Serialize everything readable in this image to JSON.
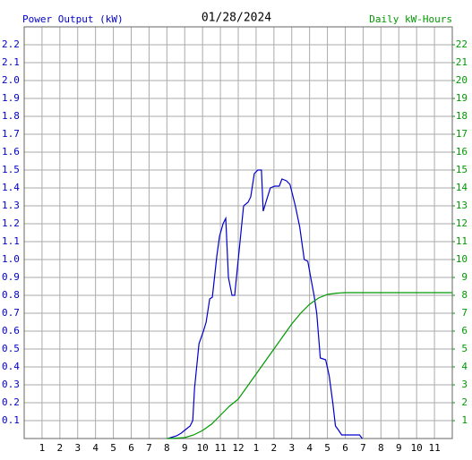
{
  "chart_data": {
    "type": "line",
    "title": "01/28/2024",
    "y_label": "Power Output (kW)",
    "y2_label": "Daily kW-Hours",
    "grid": true,
    "xlim": [
      0,
      24
    ],
    "xticks": [
      1,
      2,
      3,
      4,
      5,
      6,
      7,
      8,
      9,
      10,
      11,
      12,
      {
        "value": 13,
        "label": "1"
      },
      {
        "value": 14,
        "label": "2"
      },
      {
        "value": 15,
        "label": "3"
      },
      {
        "value": 16,
        "label": "4"
      },
      {
        "value": 17,
        "label": "5"
      },
      {
        "value": 18,
        "label": "6"
      },
      {
        "value": 19,
        "label": "7"
      },
      {
        "value": 20,
        "label": "8"
      },
      {
        "value": 21,
        "label": "9"
      },
      {
        "value": 22,
        "label": "10"
      },
      {
        "value": 23,
        "label": "11"
      }
    ],
    "ylim": [
      0,
      2.3
    ],
    "yticks": [
      0.1,
      0.2,
      0.3,
      0.4,
      0.5,
      0.6,
      0.7,
      0.8,
      0.9,
      {
        "value": 1.0,
        "label": "1.0"
      },
      1.1,
      1.2,
      1.3,
      1.4,
      1.5,
      1.6,
      1.7,
      1.8,
      1.9,
      {
        "value": 2.0,
        "label": "2.0"
      },
      2.1,
      2.2
    ],
    "y2lim": [
      0,
      23
    ],
    "y2ticks": [
      1,
      2,
      3,
      4,
      5,
      6,
      7,
      8,
      9,
      10,
      11,
      12,
      13,
      14,
      15,
      16,
      17,
      18,
      19,
      20,
      21,
      22
    ],
    "series": [
      {
        "name": "Power Output (kW)",
        "color": "#0000cc",
        "x": [
          8.05,
          8.55,
          8.8,
          9.05,
          9.3,
          9.45,
          9.55,
          9.8,
          10.05,
          10.2,
          10.4,
          10.55,
          10.8,
          10.95,
          11.15,
          11.3,
          11.45,
          11.65,
          11.8,
          12.3,
          12.55,
          12.7,
          12.9,
          13.1,
          13.3,
          13.4,
          13.55,
          13.8,
          14.05,
          14.3,
          14.45,
          14.7,
          14.9,
          15.2,
          15.45,
          15.7,
          15.9,
          16.1,
          16.25,
          16.4,
          16.6,
          16.9,
          17.1,
          17.3,
          17.45,
          17.6,
          17.8,
          18.8,
          18.95
        ],
        "values": [
          0,
          0.015,
          0.03,
          0.05,
          0.07,
          0.1,
          0.28,
          0.53,
          0.6,
          0.65,
          0.78,
          0.79,
          1.02,
          1.13,
          1.2,
          1.23,
          0.9,
          0.8,
          0.8,
          1.3,
          1.32,
          1.35,
          1.48,
          1.5,
          1.5,
          1.27,
          1.32,
          1.4,
          1.41,
          1.41,
          1.45,
          1.44,
          1.42,
          1.3,
          1.18,
          1.0,
          0.99,
          0.88,
          0.8,
          0.7,
          0.45,
          0.44,
          0.35,
          0.2,
          0.07,
          0.05,
          0.02,
          0.02,
          0
        ]
      },
      {
        "name": "Daily kW-Hours",
        "color": "#009900",
        "axis": "y2",
        "x": [
          8.0,
          8.5,
          9.0,
          9.5,
          10.0,
          10.5,
          11.0,
          11.5,
          12.0,
          12.5,
          13.0,
          13.5,
          14.0,
          14.5,
          15.0,
          15.5,
          16.0,
          16.5,
          17.0,
          17.5,
          18.0,
          24.0
        ],
        "values": [
          0,
          0.02,
          0.05,
          0.2,
          0.45,
          0.8,
          1.3,
          1.8,
          2.2,
          2.9,
          3.6,
          4.3,
          5.0,
          5.7,
          6.4,
          7.0,
          7.5,
          7.85,
          8.05,
          8.12,
          8.15,
          8.15
        ]
      }
    ]
  }
}
